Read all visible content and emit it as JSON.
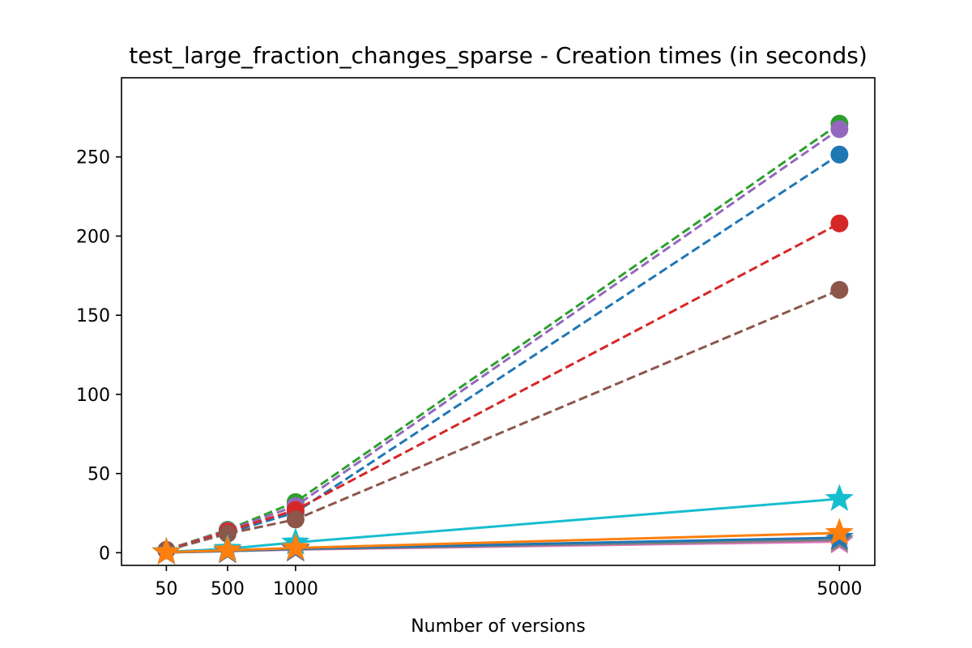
{
  "chart_data": {
    "type": "line",
    "title": "test_large_fraction_changes_sparse - Creation times (in seconds)",
    "xlabel": "Number of versions",
    "ylabel": "",
    "x": [
      50,
      500,
      1000,
      5000
    ],
    "x_ticks": [
      50,
      500,
      1000,
      5000
    ],
    "y_ticks": [
      0,
      50,
      100,
      150,
      200,
      250
    ],
    "xlim": [
      -280,
      5260
    ],
    "ylim": [
      -8,
      300
    ],
    "grid": false,
    "series": [
      {
        "color": "#1f77b4",
        "linestyle": "dashed",
        "marker": "circle",
        "values": [
          1.5,
          12.5,
          25.5,
          251.5
        ]
      },
      {
        "color": "#2ca02c",
        "linestyle": "dashed",
        "marker": "circle",
        "values": [
          1.8,
          14.5,
          32.0,
          271.0
        ]
      },
      {
        "color": "#9467bd",
        "linestyle": "dashed",
        "marker": "circle",
        "values": [
          1.7,
          14.0,
          29.5,
          267.5
        ]
      },
      {
        "color": "#d62728",
        "linestyle": "dashed",
        "marker": "circle",
        "values": [
          1.6,
          13.5,
          27.0,
          208.0
        ]
      },
      {
        "color": "#8c564b",
        "linestyle": "dashed",
        "marker": "circle",
        "values": [
          1.5,
          12.0,
          21.0,
          166.0
        ]
      },
      {
        "color": "#17becf",
        "linestyle": "solid",
        "marker": "star",
        "values": [
          0.5,
          2.5,
          6.5,
          34.0
        ]
      },
      {
        "color": "#e377c2",
        "linestyle": "solid",
        "marker": "star",
        "values": [
          0.2,
          1.0,
          2.0,
          7.0
        ]
      },
      {
        "color": "#7f7f7f",
        "linestyle": "solid",
        "marker": "star",
        "values": [
          0.2,
          1.0,
          2.2,
          8.0
        ]
      },
      {
        "color": "#1f77b4",
        "linestyle": "solid",
        "marker": "star",
        "values": [
          0.2,
          1.2,
          2.5,
          9.5
        ]
      },
      {
        "color": "#ff7f0e",
        "linestyle": "solid",
        "marker": "star",
        "values": [
          0.3,
          1.5,
          3.0,
          12.5
        ]
      }
    ]
  }
}
